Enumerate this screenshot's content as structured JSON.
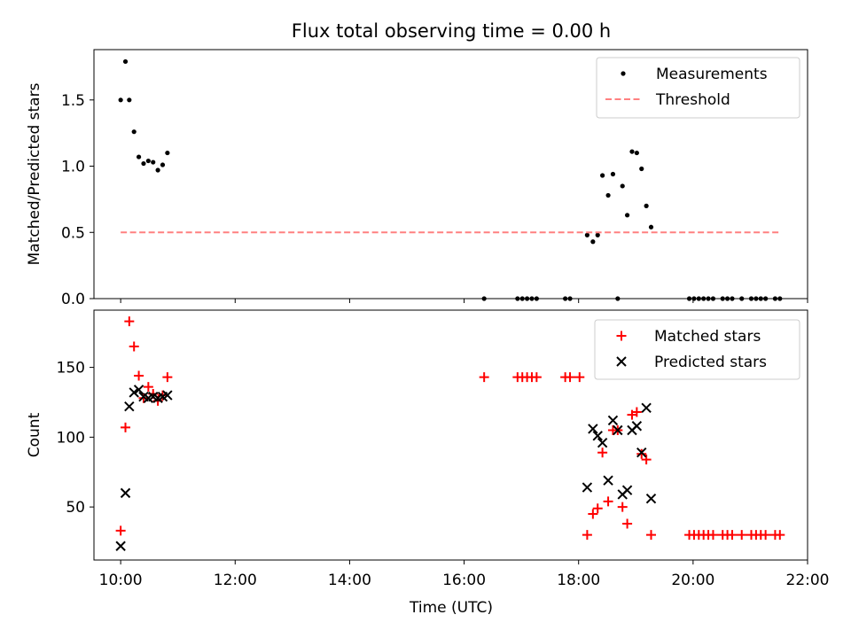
{
  "chart_data": [
    {
      "type": "scatter",
      "title": "Flux total observing time = 0.00 h",
      "xlabel": "",
      "ylabel": "Matched/Predicted stars",
      "xlim": [
        "09:32",
        "22:00"
      ],
      "ylim": [
        0,
        1.88
      ],
      "xticks": [
        "10:00",
        "12:00",
        "14:00",
        "16:00",
        "18:00",
        "20:00",
        "22:00"
      ],
      "yticks": [
        0.0,
        0.5,
        1.0,
        1.5
      ],
      "ytick_labels": [
        "0.0",
        "0.5",
        "1.0",
        "1.5"
      ],
      "legend": {
        "placement": "top-right",
        "entries": [
          "Measurements",
          "Threshold"
        ]
      },
      "series": [
        {
          "name": "Measurements",
          "kind": "points",
          "color": "#000000",
          "x": [
            "10:00",
            "10:05",
            "10:09",
            "10:14",
            "10:19",
            "10:24",
            "10:29",
            "10:34",
            "10:39",
            "10:44",
            "10:49",
            "16:21",
            "16:56",
            "17:01",
            "17:06",
            "17:11",
            "17:16",
            "17:46",
            "17:51",
            "18:09",
            "18:15",
            "18:20",
            "18:25",
            "18:31",
            "18:36",
            "18:41",
            "18:46",
            "18:51",
            "18:56",
            "19:01",
            "19:06",
            "19:11",
            "19:16",
            "19:56",
            "20:01",
            "20:06",
            "20:11",
            "20:16",
            "20:21",
            "20:31",
            "20:36",
            "20:41",
            "20:51",
            "21:01",
            "21:06",
            "21:11",
            "21:16",
            "21:26",
            "21:31"
          ],
          "y": [
            1.5,
            1.79,
            1.5,
            1.26,
            1.07,
            1.02,
            1.04,
            1.03,
            0.97,
            1.01,
            1.1,
            0,
            0,
            0,
            0,
            0,
            0,
            0,
            0,
            0.48,
            0.43,
            0.48,
            0.93,
            0.78,
            0.94,
            0,
            0.85,
            0.63,
            1.11,
            1.1,
            0.98,
            0.7,
            0.54,
            0,
            0,
            0,
            0,
            0,
            0,
            0,
            0,
            0,
            0,
            0,
            0,
            0,
            0,
            0,
            0
          ]
        },
        {
          "name": "Threshold",
          "kind": "dashed-line",
          "color": "#ff8080",
          "x": [
            "10:00",
            "21:30"
          ],
          "y": [
            0.5,
            0.5
          ]
        }
      ]
    },
    {
      "type": "scatter",
      "title": "",
      "xlabel": "Time (UTC)",
      "ylabel": "Count",
      "xlim": [
        "09:32",
        "22:00"
      ],
      "ylim": [
        12,
        191
      ],
      "xticks": [
        "10:00",
        "12:00",
        "14:00",
        "16:00",
        "18:00",
        "20:00",
        "22:00"
      ],
      "yticks": [
        50,
        100,
        150
      ],
      "ytick_labels": [
        "50",
        "100",
        "150"
      ],
      "legend": {
        "placement": "top-right",
        "entries": [
          "Matched stars",
          "Predicted stars"
        ]
      },
      "series": [
        {
          "name": "Matched stars",
          "marker": "plus",
          "color": "#ff0000",
          "x": [
            "10:00",
            "10:05",
            "10:09",
            "10:14",
            "10:19",
            "10:24",
            "10:29",
            "10:34",
            "10:39",
            "10:44",
            "10:49",
            "16:21",
            "16:56",
            "17:01",
            "17:06",
            "17:11",
            "17:16",
            "17:46",
            "17:51",
            "18:01",
            "18:09",
            "18:15",
            "18:20",
            "18:25",
            "18:31",
            "18:36",
            "18:41",
            "18:46",
            "18:51",
            "18:56",
            "19:01",
            "19:06",
            "19:11",
            "19:16",
            "19:56",
            "20:01",
            "20:06",
            "20:11",
            "20:16",
            "20:21",
            "20:31",
            "20:36",
            "20:41",
            "20:51",
            "21:01",
            "21:06",
            "21:11",
            "21:16",
            "21:26",
            "21:31"
          ],
          "y": [
            33,
            107,
            183,
            165,
            144,
            128,
            136,
            131,
            126,
            130,
            143,
            143,
            143,
            143,
            143,
            143,
            143,
            143,
            143,
            143,
            30,
            45,
            49,
            89,
            54,
            105,
            105,
            50,
            38,
            116,
            118,
            88,
            84,
            30,
            30,
            30,
            30,
            30,
            30,
            30,
            30,
            30,
            30,
            30,
            30,
            30,
            30,
            30,
            30,
            30
          ]
        },
        {
          "name": "Predicted stars",
          "marker": "x",
          "color": "#000000",
          "x": [
            "10:00",
            "10:05",
            "10:09",
            "10:14",
            "10:19",
            "10:24",
            "10:29",
            "10:34",
            "10:39",
            "10:44",
            "10:49",
            "18:09",
            "18:15",
            "18:20",
            "18:25",
            "18:31",
            "18:36",
            "18:41",
            "18:46",
            "18:51",
            "18:56",
            "19:01",
            "19:06",
            "19:11",
            "19:16"
          ],
          "y": [
            22,
            60,
            122,
            132,
            134,
            129,
            128,
            129,
            128,
            129,
            130,
            64,
            106,
            101,
            96,
            69,
            112,
            105,
            59,
            62,
            105,
            108,
            89,
            121,
            56
          ]
        }
      ]
    }
  ]
}
